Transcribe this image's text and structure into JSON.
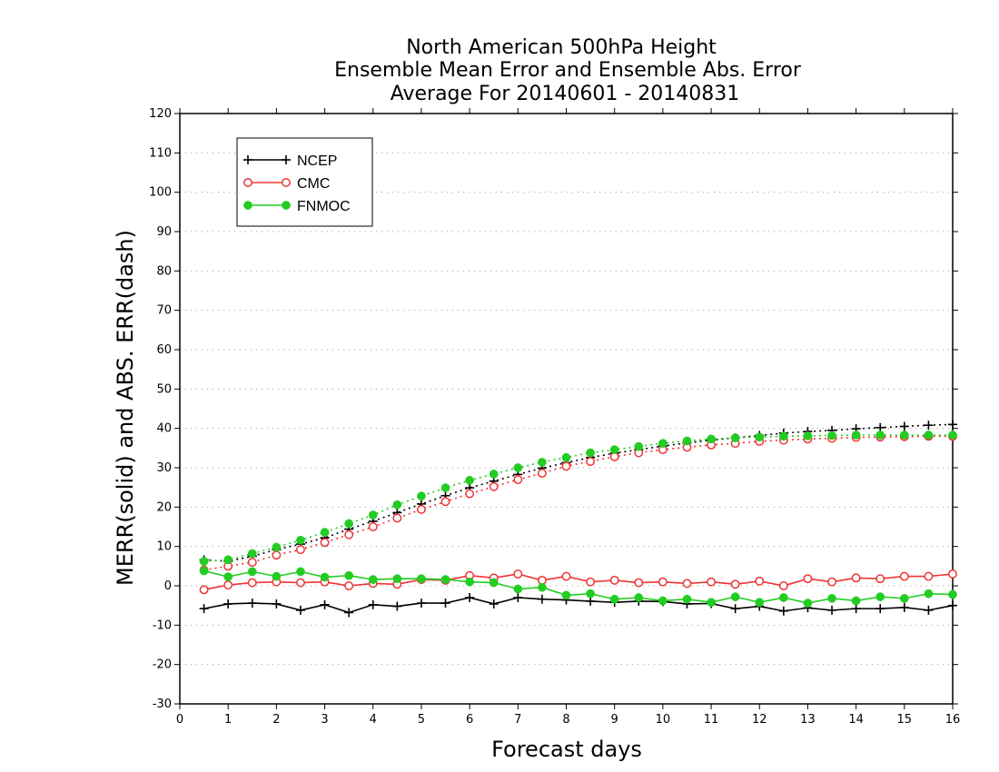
{
  "chart_data": {
    "type": "line",
    "title_lines": [
      "North American 500hPa Height",
      "Ensemble Mean Error and Ensemble Abs. Error",
      "Average For 20140601 - 20140831"
    ],
    "xlabel": "Forecast days",
    "ylabel": "MERR(solid) and ABS. ERR(dash)",
    "xlim": [
      0,
      16
    ],
    "ylim": [
      -30,
      120
    ],
    "xticks": [
      "0",
      "1",
      "2",
      "3",
      "4",
      "5",
      "6",
      "7",
      "8",
      "9",
      "10",
      "11",
      "12",
      "13",
      "14",
      "15",
      "16"
    ],
    "yticks": [
      "-30",
      "-20",
      "-10",
      "0",
      "10",
      "20",
      "30",
      "40",
      "50",
      "60",
      "70",
      "80",
      "90",
      "100",
      "110",
      "120"
    ],
    "grid": true,
    "legend_position": "top-left",
    "x": [
      0.5,
      1,
      1.5,
      2,
      2.5,
      3,
      3.5,
      4,
      4.5,
      5,
      5.5,
      6,
      6.5,
      7,
      7.5,
      8,
      8.5,
      9,
      9.5,
      10,
      10.5,
      11,
      11.5,
      12,
      12.5,
      13,
      13.5,
      14,
      14.5,
      15,
      15.5,
      16
    ],
    "series": [
      {
        "name": "NCEP",
        "color": "#000000",
        "marker": "plus",
        "merr": [
          -5.8,
          -4.6,
          -4.4,
          -4.6,
          -6.2,
          -4.8,
          -6.8,
          -4.8,
          -5.2,
          -4.4,
          -4.4,
          -3.0,
          -4.6,
          -3.0,
          -3.4,
          -3.6,
          -3.9,
          -4.2,
          -3.9,
          -4.0,
          -4.6,
          -4.5,
          -5.8,
          -5.2,
          -6.4,
          -5.6,
          -6.2,
          -5.8,
          -5.8,
          -5.5,
          -6.2,
          -5.0
        ],
        "abs_err": [
          6.6,
          6.2,
          7.5,
          9.2,
          10.6,
          12.2,
          14.4,
          16.4,
          18.6,
          20.8,
          22.9,
          24.9,
          26.6,
          28.3,
          29.9,
          31.3,
          32.6,
          33.7,
          34.6,
          35.5,
          36.3,
          37.0,
          37.6,
          38.2,
          38.8,
          39.2,
          39.5,
          39.9,
          40.2,
          40.5,
          40.8,
          41.0
        ]
      },
      {
        "name": "CMC",
        "color": "#ee3333",
        "marker": "open-circle",
        "merr": [
          -1.0,
          0.2,
          0.8,
          1.0,
          0.8,
          1.0,
          0.0,
          0.6,
          0.4,
          1.6,
          1.4,
          2.6,
          2.0,
          3.0,
          1.4,
          2.4,
          1.0,
          1.4,
          0.8,
          1.0,
          0.6,
          1.0,
          0.4,
          1.2,
          0.0,
          1.8,
          1.0,
          2.0,
          1.8,
          2.4,
          2.4,
          3.0
        ],
        "abs_err": [
          4.0,
          5.0,
          6.0,
          7.8,
          9.2,
          11.0,
          13.0,
          15.0,
          17.2,
          19.4,
          21.4,
          23.4,
          25.2,
          27.0,
          28.6,
          30.4,
          31.6,
          32.8,
          33.8,
          34.6,
          35.2,
          35.8,
          36.2,
          36.7,
          37.0,
          37.3,
          37.5,
          37.7,
          37.8,
          37.9,
          38.0,
          38.0
        ]
      },
      {
        "name": "FNMOC",
        "color": "#22cc22",
        "marker": "filled-circle",
        "merr": [
          3.8,
          2.3,
          3.6,
          2.4,
          3.6,
          2.2,
          2.6,
          1.6,
          1.8,
          1.8,
          1.6,
          1.0,
          0.8,
          -0.8,
          -0.4,
          -2.4,
          -2.0,
          -3.4,
          -3.0,
          -3.8,
          -3.4,
          -4.2,
          -2.8,
          -4.2,
          -3.0,
          -4.4,
          -3.2,
          -3.8,
          -2.8,
          -3.2,
          -2.0,
          -2.2
        ],
        "abs_err": [
          6.2,
          6.6,
          8.2,
          9.8,
          11.6,
          13.6,
          15.8,
          18.0,
          20.6,
          22.8,
          24.9,
          26.8,
          28.4,
          30.0,
          31.4,
          32.6,
          33.8,
          34.6,
          35.4,
          36.2,
          36.8,
          37.3,
          37.6,
          37.8,
          38.0,
          38.1,
          38.2,
          38.3,
          38.3,
          38.3,
          38.3,
          38.3
        ]
      }
    ]
  }
}
